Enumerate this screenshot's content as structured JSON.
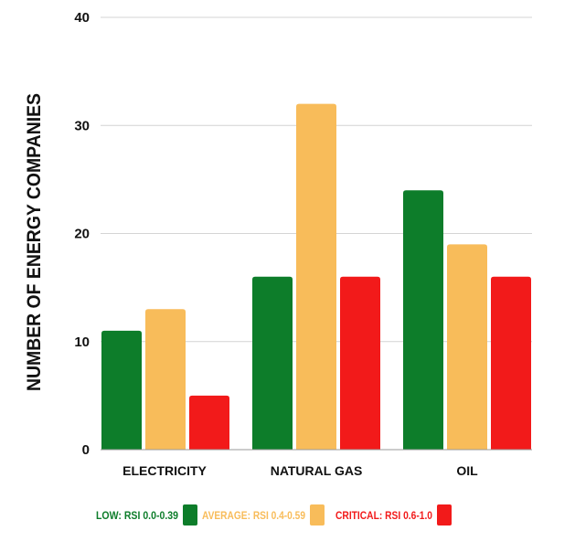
{
  "chart_data": {
    "type": "bar",
    "title": "",
    "xlabel": "",
    "ylabel": "NUMBER OF ENERGY COMPANIES",
    "categories": [
      "ELECTRICITY",
      "NATURAL GAS",
      "OIL"
    ],
    "series": [
      {
        "name": "LOW: RSI 0.0-0.39",
        "color": "#0d7d2a",
        "values": [
          11,
          16,
          24
        ]
      },
      {
        "name": "AVERAGE: RSI 0.4-0.59",
        "color": "#f8bc5a",
        "values": [
          13,
          32,
          19
        ]
      },
      {
        "name": "CRITICAL: RSI 0.6-1.0",
        "color": "#f21a1a",
        "values": [
          5,
          16,
          16
        ]
      }
    ],
    "ylim": [
      0,
      40
    ],
    "yticks": [
      0,
      10,
      20,
      30,
      40
    ],
    "grid": true,
    "legend_position": "bottom"
  }
}
